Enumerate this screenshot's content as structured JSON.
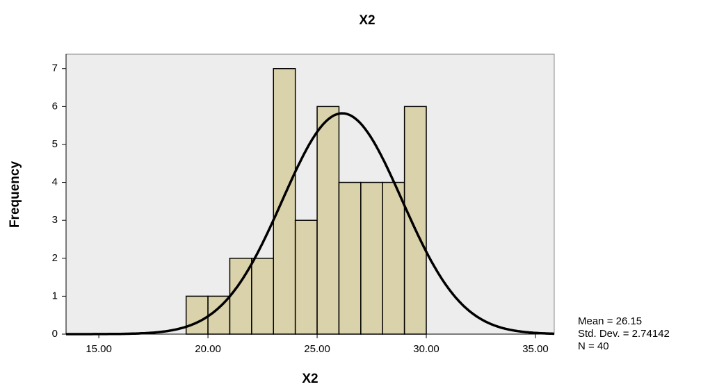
{
  "chart_data": {
    "type": "histogram",
    "title": "X2",
    "x_label": "X2",
    "y_label": "Frequency",
    "bins": [
      19,
      20,
      21,
      22,
      23,
      24,
      25,
      26,
      27,
      28,
      29,
      30
    ],
    "values": [
      1,
      1,
      2,
      2,
      7,
      3,
      6,
      4,
      4,
      4,
      6
    ],
    "color": "#d5cd9e",
    "xlim": [
      13.5,
      35.86
    ],
    "ylim": [
      0,
      7.38
    ],
    "xticks": [
      {
        "value": 15,
        "label": "15.00"
      },
      {
        "value": 20,
        "label": "20.00"
      },
      {
        "value": 25,
        "label": "25.00"
      },
      {
        "value": 30,
        "label": "30.00"
      },
      {
        "value": 35,
        "label": "35.00"
      }
    ],
    "yticks": [
      0,
      1,
      2,
      3,
      4,
      5,
      6,
      7
    ],
    "normal_curve": {
      "mean": 26.15,
      "std": 2.74142,
      "n": 40
    },
    "stats_text": [
      "Mean = 26.15",
      "Std. Dev. = 2.74142",
      "N = 40"
    ]
  }
}
